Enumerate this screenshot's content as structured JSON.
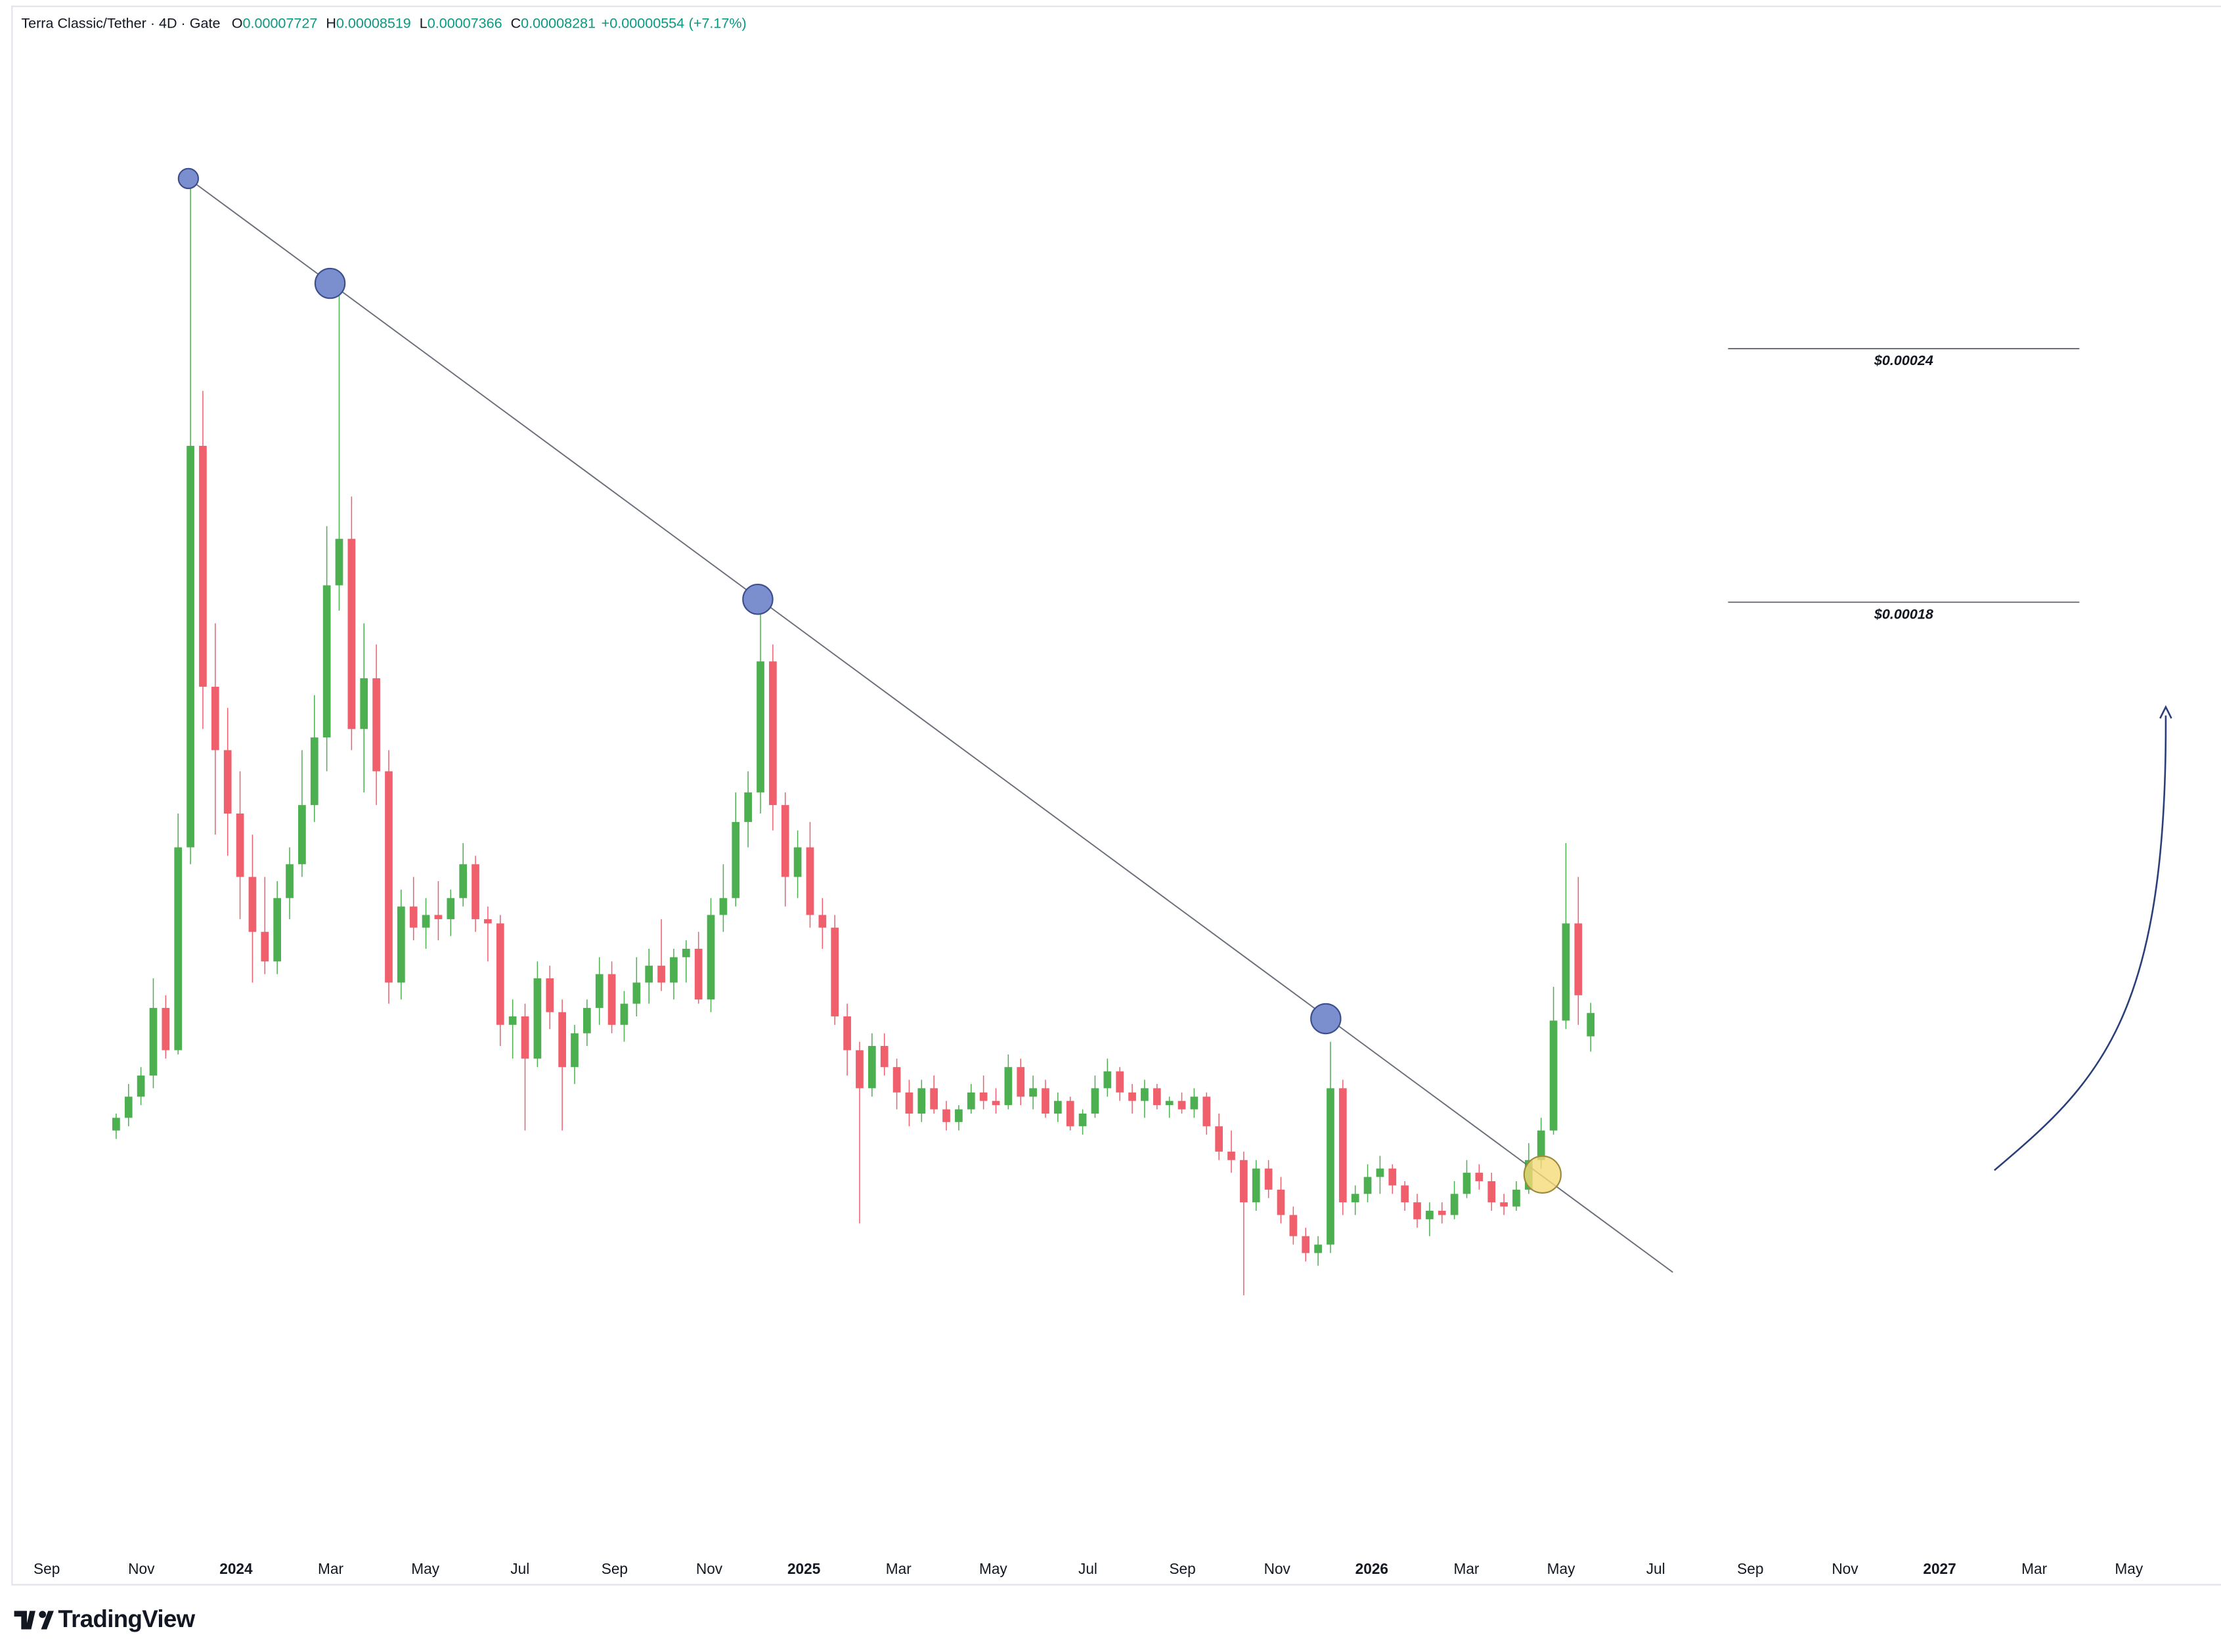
{
  "chart_data": {
    "type": "candlestick",
    "symbol": "Terra Classic/Tether · 4D · Gate",
    "ohlc_labels": [
      "O",
      "H",
      "L",
      "C"
    ],
    "change": "+0.00000554",
    "change_pct": "(+7.17%)",
    "up_color": "#4caf50",
    "down_color": "#ef5f6c",
    "ylim": [
      -4.46e-05,
      0.0003225
    ],
    "x_labels": [
      "Sep",
      "Nov",
      "2024",
      "Mar",
      "May",
      "Jul",
      "Sep",
      "Nov",
      "2025",
      "Mar",
      "May",
      "Jul",
      "Sep",
      "Nov",
      "2026",
      "Mar",
      "May",
      "Jul",
      "Sep",
      "Nov",
      "2027",
      "Mar",
      "May"
    ],
    "levels": [
      {
        "value": 0.00024,
        "label": "$0.00024"
      },
      {
        "value": 0.00018,
        "label": "$0.00018"
      }
    ],
    "watermark": "TradingView",
    "candles": [
      [
        5.5e-05,
        5.9e-05,
        5.3e-05,
        5.8e-05
      ],
      [
        5.8e-05,
        6.6e-05,
        5.6e-05,
        6.3e-05
      ],
      [
        6.3e-05,
        7e-05,
        6.1e-05,
        6.8e-05
      ],
      [
        6.8e-05,
        9.1e-05,
        6.5e-05,
        8.4e-05
      ],
      [
        8.4e-05,
        8.7e-05,
        7.2e-05,
        7.4e-05
      ],
      [
        7.4e-05,
        0.00013,
        7.3e-05,
        0.000122
      ],
      [
        0.000122,
        0.00028,
        0.000118,
        0.000217
      ],
      [
        0.000217,
        0.00023,
        0.00015,
        0.00016
      ],
      [
        0.00016,
        0.000175,
        0.000125,
        0.000145
      ],
      [
        0.000145,
        0.000155,
        0.00012,
        0.00013
      ],
      [
        0.00013,
        0.00014,
        0.000105,
        0.000115
      ],
      [
        0.000115,
        0.000125,
        9e-05,
        0.000102
      ],
      [
        0.000102,
        0.000115,
        9.2e-05,
        9.5e-05
      ],
      [
        9.5e-05,
        0.000114,
        9.2e-05,
        0.00011
      ],
      [
        0.00011,
        0.000122,
        0.000105,
        0.000118
      ],
      [
        0.000118,
        0.000145,
        0.000115,
        0.000132
      ],
      [
        0.000132,
        0.000158,
        0.000128,
        0.000148
      ],
      [
        0.000148,
        0.000198,
        0.00014,
        0.000184
      ],
      [
        0.000184,
        0.000255,
        0.000178,
        0.000195
      ],
      [
        0.000195,
        0.000205,
        0.000145,
        0.00015
      ],
      [
        0.00015,
        0.000175,
        0.000135,
        0.000162
      ],
      [
        0.000162,
        0.00017,
        0.000132,
        0.00014
      ],
      [
        0.00014,
        0.000145,
        8.5e-05,
        9e-05
      ],
      [
        9e-05,
        0.000112,
        8.6e-05,
        0.000108
      ],
      [
        0.000108,
        0.000115,
        0.0001,
        0.000103
      ],
      [
        0.000103,
        0.00011,
        9.8e-05,
        0.000106
      ],
      [
        0.000106,
        0.000114,
        0.0001,
        0.000105
      ],
      [
        0.000105,
        0.000112,
        0.000101,
        0.00011
      ],
      [
        0.00011,
        0.000123,
        0.000108,
        0.000118
      ],
      [
        0.000118,
        0.00012,
        0.000102,
        0.000105
      ],
      [
        0.000105,
        0.000108,
        9.5e-05,
        0.000104
      ],
      [
        0.000104,
        0.000106,
        7.5e-05,
        8e-05
      ],
      [
        8e-05,
        8.6e-05,
        7.2e-05,
        8.2e-05
      ],
      [
        8.2e-05,
        8.5e-05,
        5.5e-05,
        7.2e-05
      ],
      [
        7.2e-05,
        9.5e-05,
        7e-05,
        9.1e-05
      ],
      [
        9.1e-05,
        9.4e-05,
        7.9e-05,
        8.3e-05
      ],
      [
        8.3e-05,
        8.6e-05,
        5.5e-05,
        7e-05
      ],
      [
        7e-05,
        8e-05,
        6.6e-05,
        7.8e-05
      ],
      [
        7.8e-05,
        8.6e-05,
        7.5e-05,
        8.4e-05
      ],
      [
        8.4e-05,
        9.6e-05,
        8e-05,
        9.2e-05
      ],
      [
        9.2e-05,
        9.5e-05,
        7.8e-05,
        8e-05
      ],
      [
        8e-05,
        8.8e-05,
        7.6e-05,
        8.5e-05
      ],
      [
        8.5e-05,
        9.6e-05,
        8.2e-05,
        9e-05
      ],
      [
        9e-05,
        9.8e-05,
        8.5e-05,
        9.4e-05
      ],
      [
        9.4e-05,
        0.000105,
        8.8e-05,
        9e-05
      ],
      [
        9e-05,
        9.8e-05,
        8.6e-05,
        9.6e-05
      ],
      [
        9.6e-05,
        0.0001,
        9e-05,
        9.8e-05
      ],
      [
        9.8e-05,
        0.000102,
        8.5e-05,
        8.6e-05
      ],
      [
        8.6e-05,
        0.00011,
        8.3e-05,
        0.000106
      ],
      [
        0.000106,
        0.000118,
        0.000102,
        0.00011
      ],
      [
        0.00011,
        0.000135,
        0.000108,
        0.000128
      ],
      [
        0.000128,
        0.00014,
        0.000122,
        0.000135
      ],
      [
        0.000135,
        0.000181,
        0.00013,
        0.000166
      ],
      [
        0.000166,
        0.00017,
        0.000126,
        0.000132
      ],
      [
        0.000132,
        0.000135,
        0.000108,
        0.000115
      ],
      [
        0.000115,
        0.000126,
        0.00011,
        0.000122
      ],
      [
        0.000122,
        0.000128,
        0.000103,
        0.000106
      ],
      [
        0.000106,
        0.00011,
        9.8e-05,
        0.000103
      ],
      [
        0.000103,
        0.000106,
        8e-05,
        8.2e-05
      ],
      [
        8.2e-05,
        8.5e-05,
        6.8e-05,
        7.4e-05
      ],
      [
        7.4e-05,
        7.6e-05,
        3.3e-05,
        6.5e-05
      ],
      [
        6.5e-05,
        7.8e-05,
        6.3e-05,
        7.5e-05
      ],
      [
        7.5e-05,
        7.8e-05,
        6.8e-05,
        7e-05
      ],
      [
        7e-05,
        7.2e-05,
        6e-05,
        6.4e-05
      ],
      [
        6.4e-05,
        6.7e-05,
        5.6e-05,
        5.9e-05
      ],
      [
        5.9e-05,
        6.7e-05,
        5.7e-05,
        6.5e-05
      ],
      [
        6.5e-05,
        6.8e-05,
        5.9e-05,
        6e-05
      ],
      [
        6e-05,
        6.2e-05,
        5.5e-05,
        5.7e-05
      ],
      [
        5.7e-05,
        6.1e-05,
        5.5e-05,
        6e-05
      ],
      [
        6e-05,
        6.6e-05,
        5.9e-05,
        6.4e-05
      ],
      [
        6.4e-05,
        6.8e-05,
        6e-05,
        6.2e-05
      ],
      [
        6.2e-05,
        6.5e-05,
        5.9e-05,
        6.1e-05
      ],
      [
        6.1e-05,
        7.3e-05,
        6e-05,
        7e-05
      ],
      [
        7e-05,
        7.2e-05,
        6.1e-05,
        6.3e-05
      ],
      [
        6.3e-05,
        6.8e-05,
        6e-05,
        6.5e-05
      ],
      [
        6.5e-05,
        6.7e-05,
        5.8e-05,
        5.9e-05
      ],
      [
        5.9e-05,
        6.4e-05,
        5.7e-05,
        6.2e-05
      ],
      [
        6.2e-05,
        6.3e-05,
        5.5e-05,
        5.6e-05
      ],
      [
        5.6e-05,
        6e-05,
        5.4e-05,
        5.9e-05
      ],
      [
        5.9e-05,
        6.8e-05,
        5.8e-05,
        6.5e-05
      ],
      [
        6.5e-05,
        7.2e-05,
        6.3e-05,
        6.9e-05
      ],
      [
        6.9e-05,
        7e-05,
        6.2e-05,
        6.4e-05
      ],
      [
        6.4e-05,
        6.6e-05,
        5.9e-05,
        6.2e-05
      ],
      [
        6.2e-05,
        6.7e-05,
        5.8e-05,
        6.5e-05
      ],
      [
        6.5e-05,
        6.6e-05,
        6e-05,
        6.1e-05
      ],
      [
        6.1e-05,
        6.3e-05,
        5.8e-05,
        6.2e-05
      ],
      [
        6.2e-05,
        6.4e-05,
        5.9e-05,
        6e-05
      ],
      [
        6e-05,
        6.5e-05,
        5.8e-05,
        6.3e-05
      ],
      [
        6.3e-05,
        6.4e-05,
        5.4e-05,
        5.6e-05
      ],
      [
        5.6e-05,
        5.9e-05,
        4.8e-05,
        5e-05
      ],
      [
        5e-05,
        5.5e-05,
        4.5e-05,
        4.8e-05
      ],
      [
        4.8e-05,
        5e-05,
        1.6e-05,
        3.8e-05
      ],
      [
        3.8e-05,
        4.8e-05,
        3.6e-05,
        4.6e-05
      ],
      [
        4.6e-05,
        4.8e-05,
        3.9e-05,
        4.1e-05
      ],
      [
        4.1e-05,
        4.4e-05,
        3.3e-05,
        3.5e-05
      ],
      [
        3.5e-05,
        3.7e-05,
        2.8e-05,
        3e-05
      ],
      [
        3e-05,
        3.2e-05,
        2.4e-05,
        2.6e-05
      ],
      [
        2.6e-05,
        3e-05,
        2.3e-05,
        2.8e-05
      ],
      [
        2.8e-05,
        7.6e-05,
        2.6e-05,
        6.5e-05
      ],
      [
        6.5e-05,
        6.7e-05,
        3.5e-05,
        3.8e-05
      ],
      [
        3.8e-05,
        4.2e-05,
        3.5e-05,
        4e-05
      ],
      [
        4e-05,
        4.7e-05,
        3.8e-05,
        4.4e-05
      ],
      [
        4.4e-05,
        4.9e-05,
        4e-05,
        4.6e-05
      ],
      [
        4.6e-05,
        4.7e-05,
        4e-05,
        4.2e-05
      ],
      [
        4.2e-05,
        4.3e-05,
        3.6e-05,
        3.8e-05
      ],
      [
        3.8e-05,
        4e-05,
        3.2e-05,
        3.4e-05
      ],
      [
        3.4e-05,
        3.8e-05,
        3e-05,
        3.6e-05
      ],
      [
        3.6e-05,
        3.8e-05,
        3.3e-05,
        3.5e-05
      ],
      [
        3.5e-05,
        4.3e-05,
        3.4e-05,
        4e-05
      ],
      [
        4e-05,
        4.8e-05,
        3.9e-05,
        4.5e-05
      ],
      [
        4.5e-05,
        4.7e-05,
        4.1e-05,
        4.3e-05
      ],
      [
        4.3e-05,
        4.5e-05,
        3.6e-05,
        3.8e-05
      ],
      [
        3.8e-05,
        4e-05,
        3.5e-05,
        3.7e-05
      ],
      [
        3.7e-05,
        4.3e-05,
        3.6e-05,
        4.1e-05
      ],
      [
        4.1e-05,
        5.2e-05,
        4e-05,
        4.8e-05
      ],
      [
        4.8e-05,
        5.8e-05,
        4.6e-05,
        5.5e-05
      ],
      [
        5.5e-05,
        8.9e-05,
        5.4e-05,
        8.1e-05
      ],
      [
        8.1e-05,
        0.000123,
        7.9e-05,
        0.000104
      ],
      [
        0.000104,
        0.000115,
        8e-05,
        8.7e-05
      ],
      [
        7.727e-05,
        8.519e-05,
        7.366e-05,
        8.281e-05
      ]
    ]
  }
}
